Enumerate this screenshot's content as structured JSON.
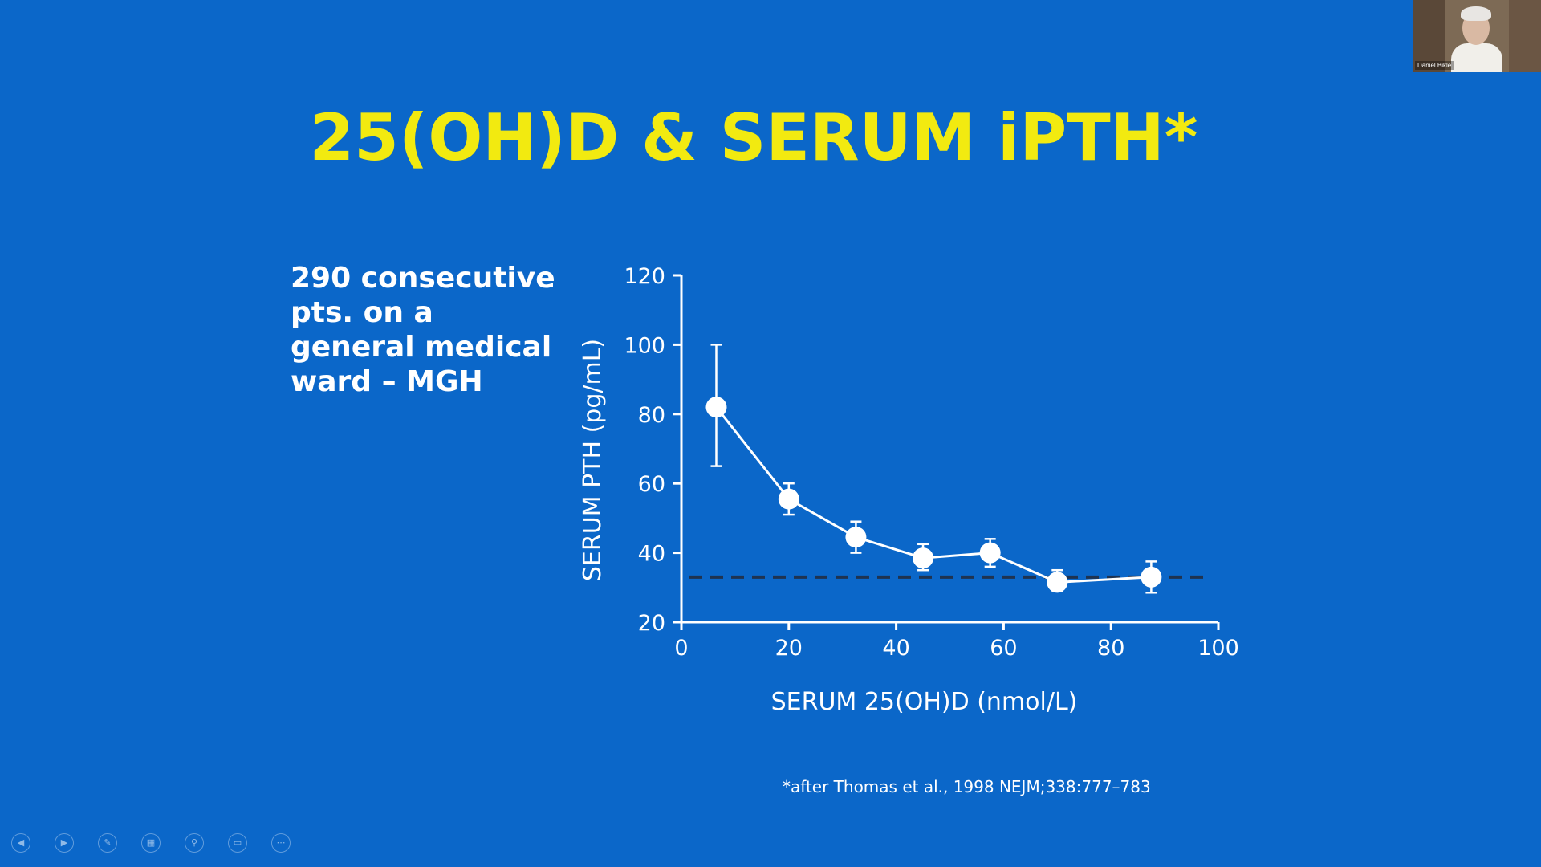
{
  "slide": {
    "title": "25(OH)D & SERUM iPTH*",
    "side_text": [
      "290 consecutive",
      "pts. on a",
      "general medical",
      "ward – MGH"
    ],
    "citation": "*after Thomas et al., 1998 NEJM;338:777–783"
  },
  "chart_data": {
    "type": "line",
    "title": "",
    "xlabel": "SERUM 25(OH)D (nmol/L)",
    "ylabel": "SERUM PTH (pg/mL)",
    "xlim": [
      0,
      100
    ],
    "ylim": [
      20,
      120
    ],
    "xticks": [
      0,
      20,
      40,
      60,
      80,
      100
    ],
    "yticks": [
      20,
      40,
      60,
      80,
      100,
      120
    ],
    "grid": false,
    "reference_line": {
      "y": 33,
      "style": "dashed"
    },
    "series": [
      {
        "x": [
          6.5,
          20,
          32.5,
          45,
          57.5,
          70,
          87.5
        ],
        "y": [
          82,
          55.5,
          44.5,
          38.5,
          40,
          31.5,
          33
        ],
        "err_low": [
          65,
          51,
          40,
          35,
          36,
          29,
          28.5
        ],
        "err_high": [
          100,
          60,
          49,
          42.5,
          44,
          35,
          37.5
        ]
      }
    ]
  },
  "webcam": {
    "name": "Daniel Bikle"
  },
  "colors": {
    "background": "#0b67c9",
    "title": "#f2ea10",
    "text": "#ffffff",
    "dashed_line": "#1f3350"
  },
  "controls": [
    {
      "name": "previous-slide",
      "icon": "◀"
    },
    {
      "name": "next-slide",
      "icon": "▶"
    },
    {
      "name": "pen",
      "icon": "✎"
    },
    {
      "name": "see-all-slides",
      "icon": "▦"
    },
    {
      "name": "zoom",
      "icon": "⚲"
    },
    {
      "name": "subtitles",
      "icon": "▭"
    },
    {
      "name": "more-options",
      "icon": "⋯"
    }
  ]
}
